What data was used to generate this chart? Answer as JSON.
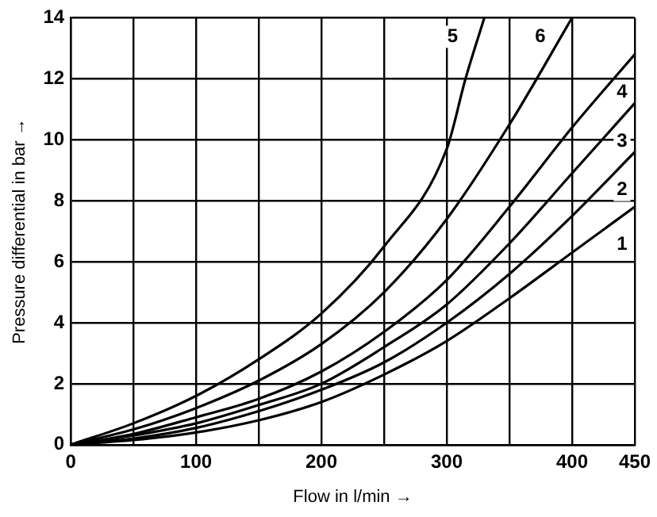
{
  "chart_data": {
    "type": "line",
    "xlabel": "Flow in l/min →",
    "ylabel": "Pressure differential in bar →",
    "xlim": [
      0,
      450
    ],
    "xticks": [
      0,
      {
        "value": 50,
        "label": null
      },
      100,
      {
        "value": 150,
        "label": null
      },
      200,
      {
        "value": 250,
        "label": null
      },
      300,
      {
        "value": 350,
        "label": null
      },
      400,
      450
    ],
    "ylim": [
      0,
      14
    ],
    "yticks": [
      0,
      2,
      4,
      6,
      8,
      10,
      12,
      14
    ],
    "grid": true,
    "legend": false,
    "marker": "none",
    "line_style": "solid",
    "series": [
      {
        "name": "1",
        "color": "#000000",
        "x": [
          0,
          50,
          100,
          150,
          200,
          250,
          300,
          350,
          400,
          450
        ],
        "values": [
          0,
          0.15,
          0.4,
          0.8,
          1.4,
          2.3,
          3.4,
          4.8,
          6.3,
          7.8
        ]
      },
      {
        "name": "2",
        "color": "#000000",
        "x": [
          0,
          50,
          100,
          150,
          200,
          250,
          300,
          350,
          400,
          450
        ],
        "values": [
          0,
          0.2,
          0.55,
          1.1,
          1.8,
          2.7,
          4.0,
          5.6,
          7.5,
          9.6
        ]
      },
      {
        "name": "3",
        "color": "#000000",
        "x": [
          0,
          50,
          100,
          150,
          200,
          250,
          300,
          350,
          400,
          450
        ],
        "values": [
          0,
          0.3,
          0.7,
          1.3,
          2.0,
          3.2,
          4.6,
          6.6,
          8.9,
          11.2
        ]
      },
      {
        "name": "4",
        "color": "#000000",
        "x": [
          0,
          50,
          100,
          150,
          200,
          250,
          300,
          350,
          400,
          450
        ],
        "values": [
          0,
          0.35,
          0.9,
          1.5,
          2.4,
          3.7,
          5.4,
          7.8,
          10.4,
          12.8
        ]
      },
      {
        "name": "5",
        "color": "#000000",
        "x": [
          0,
          50,
          100,
          150,
          200,
          250,
          300,
          315,
          330
        ],
        "values": [
          0,
          0.7,
          1.6,
          2.8,
          4.3,
          6.5,
          9.7,
          12,
          14
        ]
      },
      {
        "name": "6",
        "color": "#000000",
        "x": [
          0,
          50,
          100,
          150,
          200,
          250,
          300,
          350,
          400
        ],
        "values": [
          0,
          0.5,
          1.2,
          2.1,
          3.3,
          5.0,
          7.4,
          10.5,
          14
        ]
      }
    ]
  }
}
